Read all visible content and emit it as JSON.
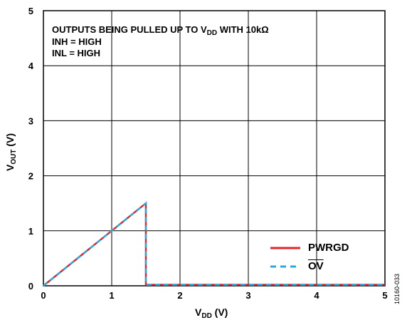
{
  "chart_data": {
    "type": "line",
    "annotation": {
      "line1_pre": "OUTPUTS BEING PULLED UP TO V",
      "line1_sub": "DD",
      "line1_post": " WITH 10kΩ",
      "line2": "INH = HIGH",
      "line3": "INL = HIGH"
    },
    "xlabel": {
      "main": "V",
      "sub": "DD",
      "unit": " (V)"
    },
    "ylabel": {
      "main": "V",
      "sub": "OUT",
      "unit": " (V)"
    },
    "xlim": [
      0,
      5
    ],
    "ylim": [
      0,
      5
    ],
    "xticks": [
      "0",
      "1",
      "2",
      "3",
      "4",
      "5"
    ],
    "yticks": [
      "0",
      "1",
      "2",
      "3",
      "4",
      "5"
    ],
    "grid": true,
    "legend_position": "bottom-right",
    "series": [
      {
        "name": "PWRGD",
        "color": "#e0262b",
        "style": "solid",
        "x": [
          0,
          1.5,
          1.5,
          5
        ],
        "y": [
          0,
          1.5,
          0.02,
          0.02
        ]
      },
      {
        "name": "OV",
        "overline": true,
        "color": "#2aa8e0",
        "style": "dashed",
        "x": [
          0,
          1.5,
          1.5,
          5
        ],
        "y": [
          0,
          1.5,
          0.02,
          0.02
        ]
      }
    ],
    "figure_id": "10160-033"
  }
}
